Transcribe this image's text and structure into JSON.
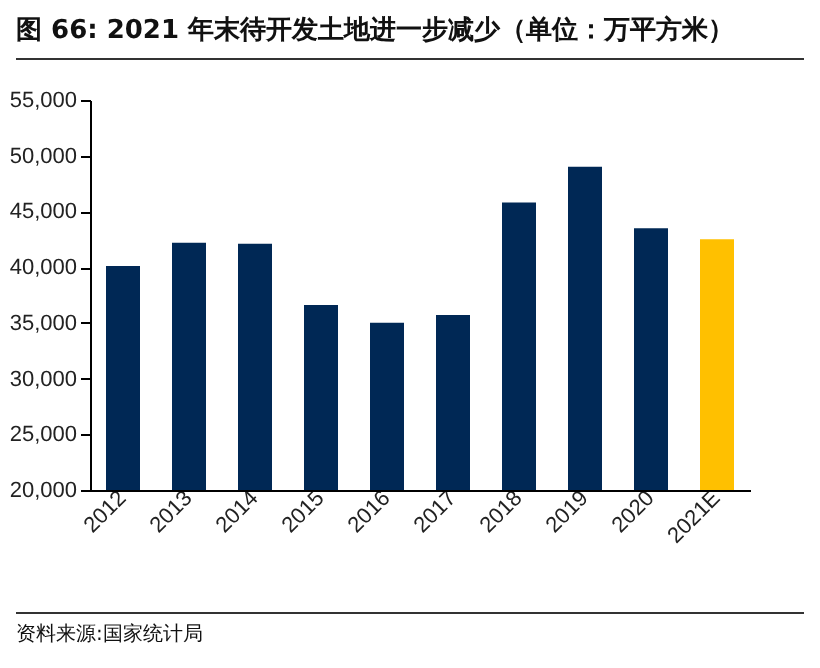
{
  "chart_data": {
    "type": "bar",
    "title": "图 66: 2021 年末待开发土地进一步减少（单位：万平方米）",
    "categories": [
      "2012",
      "2013",
      "2014",
      "2015",
      "2016",
      "2017",
      "2018",
      "2019",
      "2020",
      "2021E"
    ],
    "values": [
      40100,
      42200,
      42100,
      36600,
      35000,
      35700,
      45800,
      49000,
      43500,
      42500
    ],
    "colors": [
      "#002855",
      "#002855",
      "#002855",
      "#002855",
      "#002855",
      "#002855",
      "#002855",
      "#002855",
      "#002855",
      "#ffc000"
    ],
    "ylim": [
      20000,
      55000
    ],
    "yticks": [
      {
        "value": 20000,
        "label": "20,000"
      },
      {
        "value": 25000,
        "label": "25,000"
      },
      {
        "value": 30000,
        "label": "30,000"
      },
      {
        "value": 35000,
        "label": "35,000"
      },
      {
        "value": 40000,
        "label": "40,000"
      },
      {
        "value": 45000,
        "label": "45,000"
      },
      {
        "value": 50000,
        "label": "50,000"
      },
      {
        "value": 55000,
        "label": "55,000"
      }
    ],
    "grid": false,
    "annotations": [
      "资料来源:国家统计局"
    ]
  }
}
